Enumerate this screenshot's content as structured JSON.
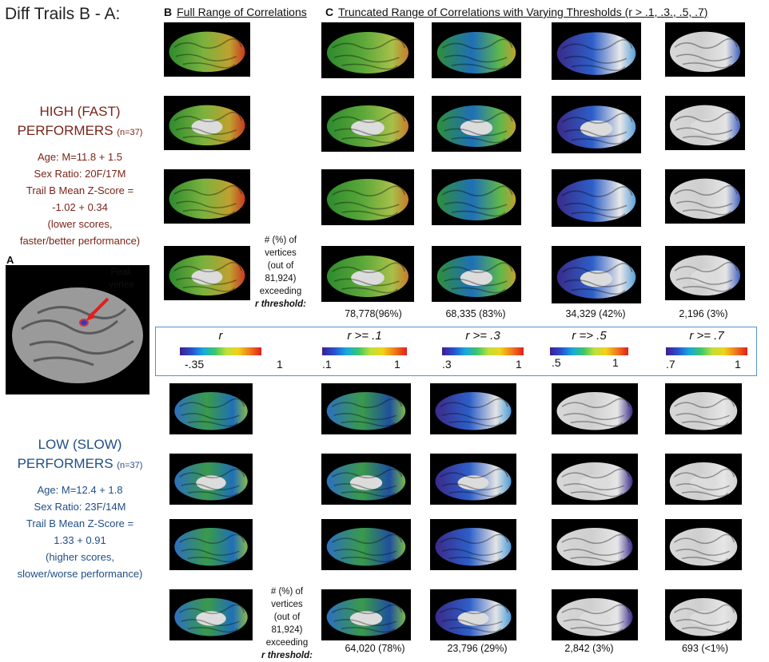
{
  "title": "Diff Trails B - A:",
  "header_b": {
    "letter": "B",
    "text": "Full Range of Correlations"
  },
  "header_c": {
    "letter": "C",
    "text": "Truncated Range of Correlations with Varying Thresholds (r > .1, .3., .5, .7)"
  },
  "high": {
    "line1": "HIGH (FAST)",
    "line2": "PERFORMERS",
    "n": "(n=37)",
    "age": "Age: M=11.8 + 1.5",
    "sex": "Sex Ratio: 20F/17M",
    "trail": "Trail B Mean Z-Score =",
    "score": "-1.02 + 0.34",
    "note1": "(lower scores,",
    "note2": "faster/better performance)"
  },
  "low": {
    "line1": "LOW (SLOW)",
    "line2": "PERFORMERS",
    "n": "(n=37)",
    "age": "Age: M=12.4 + 1.8",
    "sex": "Sex Ratio: 23F/14M",
    "trail": "Trail B Mean Z-Score =",
    "score": "1.33 + 0.91",
    "note1": "(higher scores,",
    "note2": "slower/worse performance)"
  },
  "panel_a": {
    "letter": "A",
    "peak1": "Peak",
    "peak2": "vertex"
  },
  "vertices_label": [
    "# (%) of",
    "vertices",
    "(out of",
    "81,924)",
    "exceeding",
    "r threshold:"
  ],
  "high_counts": [
    "78,778(96%)",
    "68,335 (83%)",
    "34,329 (42%)",
    "2,196 (3%)"
  ],
  "low_counts": [
    "64,020 (78%)",
    "23,796 (29%)",
    "2,842 (3%)",
    "693 (<1%)"
  ],
  "legends": [
    {
      "label": "r",
      "low": "-.35",
      "high": "1"
    },
    {
      "label": "r >= .1",
      "low": ".1",
      "high": "1"
    },
    {
      "label": "r >= .3",
      "low": ".3",
      "high": "1"
    },
    {
      "label": "r => .5",
      "low": ".5",
      "high": "1"
    },
    {
      "label": "r >= .7",
      "low": ".7",
      "high": "1"
    }
  ],
  "colors": {
    "high": "#7a2418",
    "low": "#1f4e86",
    "legend_border": "#5a8fd0"
  }
}
